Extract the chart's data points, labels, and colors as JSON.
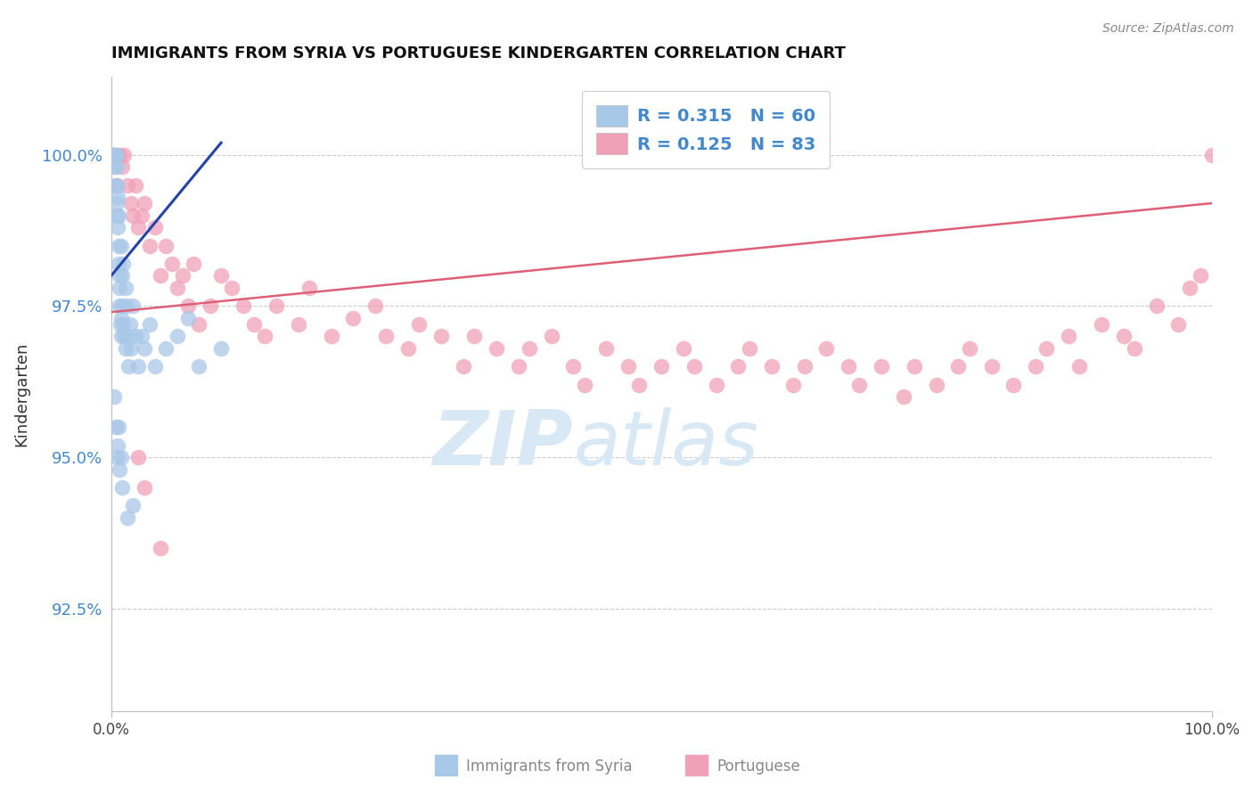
{
  "title": "IMMIGRANTS FROM SYRIA VS PORTUGUESE KINDERGARTEN CORRELATION CHART",
  "source": "Source: ZipAtlas.com",
  "ylabel": "Kindergarten",
  "y_ticks": [
    92.5,
    95.0,
    97.5,
    100.0
  ],
  "xlim": [
    0.0,
    100.0
  ],
  "ylim": [
    90.8,
    101.3
  ],
  "legend_label1": "Immigrants from Syria",
  "legend_label2": "Portuguese",
  "R1": "0.315",
  "N1": "60",
  "R2": "0.125",
  "N2": "83",
  "color_blue": "#a8c8e8",
  "color_pink": "#f0a0b8",
  "color_blue_line": "#2244aa",
  "color_pink_line": "#dd6077",
  "color_axis": "#bbbbbb",
  "color_grid": "#cccccc",
  "color_ytick_label": "#4488cc",
  "watermark_zip": "ZIP",
  "watermark_atlas": "atlas",
  "watermark_color": "#d8e8f5",
  "blue_x": [
    0.1,
    0.15,
    0.2,
    0.25,
    0.3,
    0.3,
    0.35,
    0.4,
    0.4,
    0.45,
    0.5,
    0.5,
    0.5,
    0.55,
    0.6,
    0.6,
    0.65,
    0.7,
    0.7,
    0.75,
    0.8,
    0.8,
    0.85,
    0.9,
    0.9,
    0.95,
    1.0,
    1.0,
    1.1,
    1.1,
    1.2,
    1.3,
    1.3,
    1.4,
    1.5,
    1.6,
    1.7,
    1.8,
    2.0,
    2.2,
    2.5,
    2.8,
    3.0,
    3.5,
    4.0,
    5.0,
    6.0,
    7.0,
    8.0,
    10.0,
    0.3,
    0.4,
    0.5,
    0.6,
    0.7,
    0.8,
    0.9,
    1.0,
    1.5,
    2.0
  ],
  "blue_y": [
    100.0,
    100.0,
    100.0,
    100.0,
    100.0,
    99.8,
    100.0,
    100.0,
    99.5,
    100.0,
    99.8,
    99.5,
    99.2,
    99.0,
    98.8,
    99.3,
    98.5,
    98.2,
    99.0,
    97.8,
    98.0,
    97.5,
    97.2,
    97.0,
    98.5,
    97.3,
    97.5,
    98.0,
    97.2,
    98.2,
    97.0,
    97.8,
    96.8,
    97.5,
    97.0,
    96.5,
    97.2,
    96.8,
    97.5,
    97.0,
    96.5,
    97.0,
    96.8,
    97.2,
    96.5,
    96.8,
    97.0,
    97.3,
    96.5,
    96.8,
    96.0,
    95.5,
    95.0,
    95.2,
    95.5,
    94.8,
    95.0,
    94.5,
    94.0,
    94.2
  ],
  "pink_x": [
    0.5,
    0.8,
    1.0,
    1.2,
    1.5,
    1.8,
    2.0,
    2.2,
    2.5,
    2.8,
    3.0,
    3.5,
    4.0,
    4.5,
    5.0,
    5.5,
    6.0,
    6.5,
    7.0,
    7.5,
    8.0,
    9.0,
    10.0,
    11.0,
    12.0,
    13.0,
    14.0,
    15.0,
    17.0,
    18.0,
    20.0,
    22.0,
    24.0,
    25.0,
    27.0,
    28.0,
    30.0,
    32.0,
    33.0,
    35.0,
    37.0,
    38.0,
    40.0,
    42.0,
    43.0,
    45.0,
    47.0,
    48.0,
    50.0,
    52.0,
    53.0,
    55.0,
    57.0,
    58.0,
    60.0,
    62.0,
    63.0,
    65.0,
    67.0,
    68.0,
    70.0,
    72.0,
    73.0,
    75.0,
    77.0,
    78.0,
    80.0,
    82.0,
    84.0,
    85.0,
    87.0,
    88.0,
    90.0,
    92.0,
    93.0,
    95.0,
    97.0,
    98.0,
    99.0,
    100.0,
    2.5,
    3.0,
    4.5
  ],
  "pink_y": [
    99.5,
    100.0,
    99.8,
    100.0,
    99.5,
    99.2,
    99.0,
    99.5,
    98.8,
    99.0,
    99.2,
    98.5,
    98.8,
    98.0,
    98.5,
    98.2,
    97.8,
    98.0,
    97.5,
    98.2,
    97.2,
    97.5,
    98.0,
    97.8,
    97.5,
    97.2,
    97.0,
    97.5,
    97.2,
    97.8,
    97.0,
    97.3,
    97.5,
    97.0,
    96.8,
    97.2,
    97.0,
    96.5,
    97.0,
    96.8,
    96.5,
    96.8,
    97.0,
    96.5,
    96.2,
    96.8,
    96.5,
    96.2,
    96.5,
    96.8,
    96.5,
    96.2,
    96.5,
    96.8,
    96.5,
    96.2,
    96.5,
    96.8,
    96.5,
    96.2,
    96.5,
    96.0,
    96.5,
    96.2,
    96.5,
    96.8,
    96.5,
    96.2,
    96.5,
    96.8,
    97.0,
    96.5,
    97.2,
    97.0,
    96.8,
    97.5,
    97.2,
    97.8,
    98.0,
    100.0,
    95.0,
    94.5,
    93.5
  ],
  "blue_trend_x": [
    0.0,
    10.0
  ],
  "blue_trend_y": [
    98.0,
    100.2
  ],
  "pink_trend_x": [
    0.0,
    100.0
  ],
  "pink_trend_y": [
    97.4,
    99.2
  ]
}
